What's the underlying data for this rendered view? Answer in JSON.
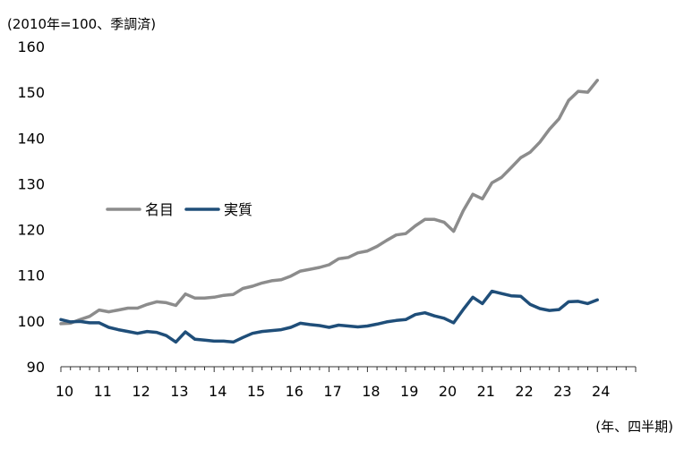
{
  "chart_data": {
    "type": "line",
    "title": "",
    "ylabel": "(2010年=100、季調済)",
    "xlabel": "(年、四半期)",
    "ylim": [
      90,
      160
    ],
    "yticks": [
      90,
      100,
      110,
      120,
      130,
      140,
      150,
      160
    ],
    "xlim": [
      2010,
      2025
    ],
    "xticks": [
      {
        "value": 2010,
        "label": "10"
      },
      {
        "value": 2011,
        "label": "11"
      },
      {
        "value": 2012,
        "label": "12"
      },
      {
        "value": 2013,
        "label": "13"
      },
      {
        "value": 2014,
        "label": "14"
      },
      {
        "value": 2015,
        "label": "15"
      },
      {
        "value": 2016,
        "label": "16"
      },
      {
        "value": 2017,
        "label": "17"
      },
      {
        "value": 2018,
        "label": "18"
      },
      {
        "value": 2019,
        "label": "19"
      },
      {
        "value": 2020,
        "label": "20"
      },
      {
        "value": 2021,
        "label": "21"
      },
      {
        "value": 2022,
        "label": "22"
      },
      {
        "value": 2023,
        "label": "23"
      },
      {
        "value": 2024,
        "label": "24"
      }
    ],
    "x_start": 2010.0,
    "x_step": 0.25,
    "legend_placement": "center-left",
    "grid": false,
    "series": [
      {
        "name": "名目",
        "color": "#8c8c8c",
        "values": [
          99.4,
          99.5,
          100.3,
          101.0,
          102.4,
          102.0,
          102.4,
          102.8,
          102.8,
          103.6,
          104.2,
          104.0,
          103.4,
          105.9,
          105.0,
          105.0,
          105.2,
          105.6,
          105.8,
          107.1,
          107.6,
          108.3,
          108.8,
          109.0,
          109.8,
          110.9,
          111.3,
          111.7,
          112.3,
          113.6,
          113.9,
          114.9,
          115.3,
          116.3,
          117.6,
          118.8,
          119.1,
          120.8,
          122.2,
          122.2,
          121.6,
          119.6,
          124.1,
          127.7,
          126.7,
          130.2,
          131.4,
          133.5,
          135.7,
          136.9,
          139.1,
          141.9,
          144.2,
          148.2,
          150.2,
          150.0,
          152.6
        ]
      },
      {
        "name": "実質",
        "color": "#1f4e79",
        "values": [
          100.3,
          99.8,
          99.9,
          99.6,
          99.6,
          98.6,
          98.1,
          97.7,
          97.3,
          97.7,
          97.5,
          96.8,
          95.4,
          97.6,
          96.0,
          95.8,
          95.6,
          95.6,
          95.4,
          96.4,
          97.3,
          97.7,
          97.9,
          98.1,
          98.6,
          99.5,
          99.2,
          99.0,
          98.6,
          99.1,
          98.9,
          98.7,
          98.9,
          99.3,
          99.8,
          100.1,
          100.3,
          101.4,
          101.8,
          101.1,
          100.6,
          99.6,
          102.5,
          105.2,
          103.8,
          106.5,
          106.0,
          105.5,
          105.4,
          103.6,
          102.7,
          102.3,
          102.5,
          104.2,
          104.3,
          103.8,
          104.6
        ]
      }
    ]
  }
}
